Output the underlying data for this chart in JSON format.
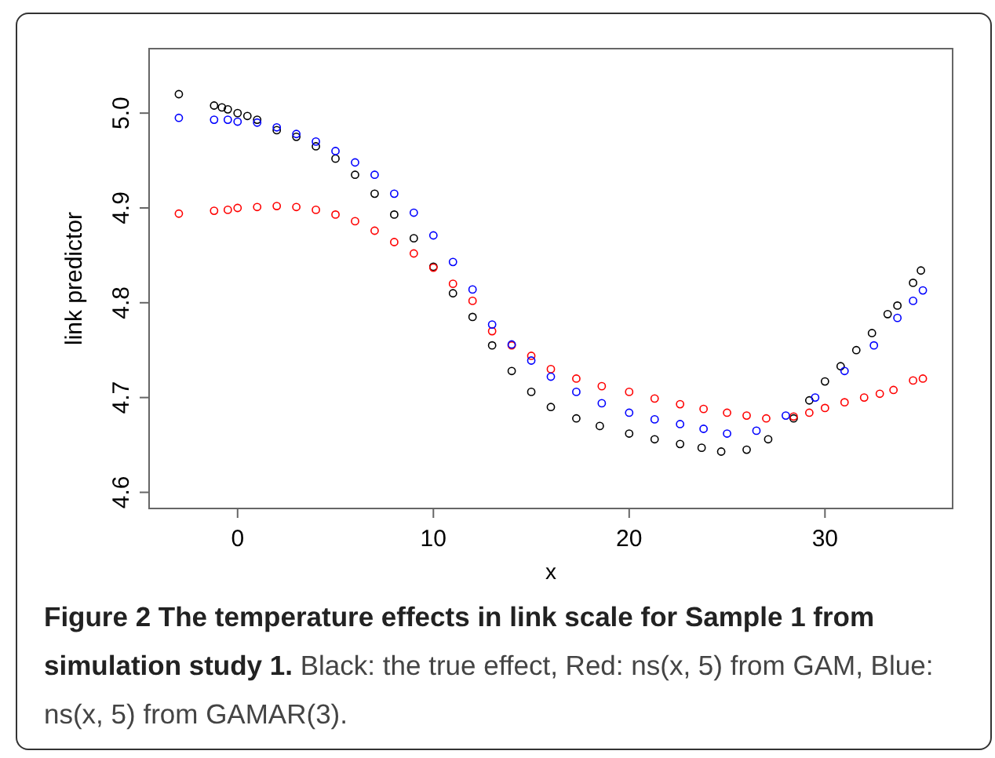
{
  "chart_data": {
    "type": "scatter",
    "title": "Figure 2 The temperature effects in link scale for Sample 1 from simulation study 1.",
    "annotations": [
      "Black: the true effect, Red: ns(x, 5) from GAM, Blue: ns(x, 5) from GAMAR(3)."
    ],
    "xlabel": "x",
    "ylabel": "link predictor",
    "xlim": [
      -4.52,
      36.52
    ],
    "xticks": [
      0,
      10,
      20,
      30
    ],
    "ylim": [
      4.583,
      5.068
    ],
    "yticks": [
      {
        "value": 4.6,
        "label": "4.6"
      },
      {
        "value": 4.7,
        "label": "4.7"
      },
      {
        "value": 4.8,
        "label": "4.8"
      },
      {
        "value": 4.9,
        "label": "4.9"
      },
      {
        "value": 5.0,
        "label": "5.0"
      }
    ],
    "marker": "circle",
    "grid": false,
    "series": [
      {
        "color": "#000000",
        "x": [
          -3,
          -1.2,
          -0.8,
          -0.5,
          0,
          0.5,
          1,
          2,
          3,
          4,
          5,
          6,
          7,
          8,
          9,
          10,
          11,
          12,
          13,
          14,
          15,
          16,
          17.3,
          18.5,
          20,
          21.3,
          22.6,
          23.7,
          24.7,
          26,
          27.1,
          28.4,
          29.2,
          30,
          30.8,
          31.6,
          32.4,
          33.2,
          33.7,
          34.5,
          34.9
        ],
        "values": [
          5.02,
          5.008,
          5.006,
          5.004,
          5.0,
          4.997,
          4.993,
          4.982,
          4.975,
          4.965,
          4.952,
          4.935,
          4.915,
          4.893,
          4.868,
          4.838,
          4.81,
          4.785,
          4.755,
          4.728,
          4.706,
          4.69,
          4.678,
          4.67,
          4.662,
          4.656,
          4.651,
          4.647,
          4.643,
          4.645,
          4.656,
          4.678,
          4.697,
          4.717,
          4.733,
          4.75,
          4.768,
          4.788,
          4.797,
          4.821,
          4.834
        ]
      },
      {
        "color": "#ff0000",
        "x": [
          -3,
          -1.2,
          -0.5,
          0,
          1,
          2,
          3,
          4,
          5,
          6,
          7,
          8,
          9,
          10,
          11,
          12,
          13,
          14,
          15,
          16,
          17.3,
          18.6,
          20,
          21.3,
          22.6,
          23.8,
          25,
          26,
          27,
          28.4,
          29.2,
          30,
          31,
          32,
          32.8,
          33.5,
          34.5,
          35
        ],
        "values": [
          4.894,
          4.897,
          4.898,
          4.9,
          4.901,
          4.902,
          4.901,
          4.898,
          4.893,
          4.886,
          4.876,
          4.864,
          4.852,
          4.837,
          4.82,
          4.802,
          4.77,
          4.755,
          4.744,
          4.73,
          4.72,
          4.712,
          4.706,
          4.699,
          4.693,
          4.688,
          4.684,
          4.681,
          4.678,
          4.68,
          4.684,
          4.689,
          4.695,
          4.7,
          4.704,
          4.708,
          4.718,
          4.72
        ]
      },
      {
        "color": "#0000ff",
        "x": [
          -3,
          -1.2,
          -0.5,
          0,
          1,
          2,
          3,
          4,
          5,
          6,
          7,
          8,
          9,
          10,
          11,
          12,
          13,
          14,
          15,
          16,
          17.3,
          18.6,
          20,
          21.3,
          22.6,
          23.8,
          25,
          26.5,
          28,
          29.5,
          31,
          32.5,
          33.7,
          34.5,
          35
        ],
        "values": [
          4.995,
          4.993,
          4.993,
          4.991,
          4.99,
          4.985,
          4.978,
          4.97,
          4.96,
          4.948,
          4.935,
          4.915,
          4.895,
          4.871,
          4.843,
          4.814,
          4.777,
          4.756,
          4.739,
          4.722,
          4.706,
          4.694,
          4.684,
          4.677,
          4.672,
          4.667,
          4.662,
          4.665,
          4.681,
          4.7,
          4.728,
          4.755,
          4.784,
          4.802,
          4.813
        ]
      }
    ]
  }
}
